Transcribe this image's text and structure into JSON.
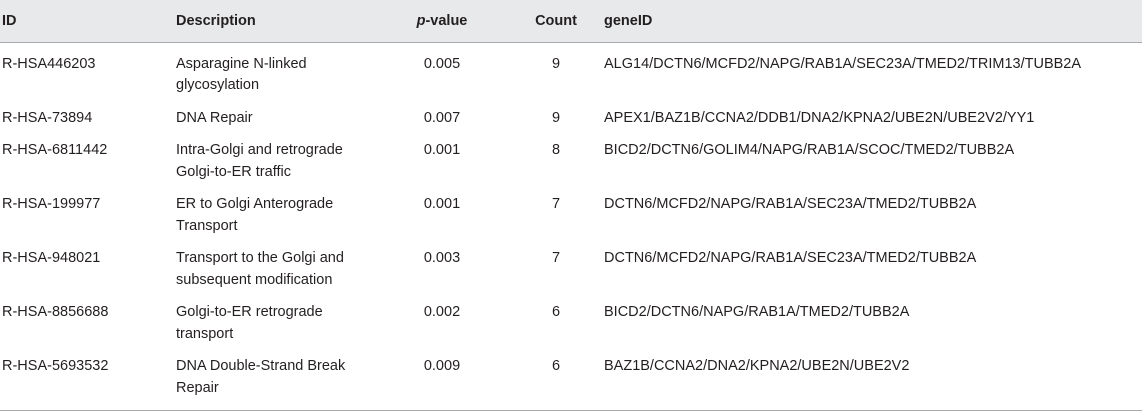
{
  "table": {
    "headers": {
      "id": "ID",
      "description": "Description",
      "pvalue_italic": "p",
      "pvalue_rest": "-value",
      "count": "Count",
      "geneid": "geneID"
    },
    "rows": [
      {
        "id": "R-HSA446203",
        "description": "Asparagine N-linked glycosylation",
        "pvalue": "0.005",
        "count": "9",
        "geneid": "ALG14/DCTN6/MCFD2/NAPG/RAB1A/SEC23A/TMED2/TRIM13/TUBB2A"
      },
      {
        "id": "R-HSA-73894",
        "description": "DNA Repair",
        "pvalue": "0.007",
        "count": "9",
        "geneid": "APEX1/BAZ1B/CCNA2/DDB1/DNA2/KPNA2/UBE2N/UBE2V2/YY1"
      },
      {
        "id": "R-HSA-6811442",
        "description": "Intra-Golgi and retrograde Golgi-to-ER traffic",
        "pvalue": "0.001",
        "count": "8",
        "geneid": "BICD2/DCTN6/GOLIM4/NAPG/RAB1A/SCOC/TMED2/TUBB2A"
      },
      {
        "id": "R-HSA-199977",
        "description": "ER to Golgi Anterograde Transport",
        "pvalue": "0.001",
        "count": "7",
        "geneid": "DCTN6/MCFD2/NAPG/RAB1A/SEC23A/TMED2/TUBB2A"
      },
      {
        "id": "R-HSA-948021",
        "description": "Transport to the Golgi and subsequent modification",
        "pvalue": "0.003",
        "count": "7",
        "geneid": "DCTN6/MCFD2/NAPG/RAB1A/SEC23A/TMED2/TUBB2A"
      },
      {
        "id": "R-HSA-8856688",
        "description": "Golgi-to-ER retrograde transport",
        "pvalue": "0.002",
        "count": "6",
        "geneid": "BICD2/DCTN6/NAPG/RAB1A/TMED2/TUBB2A"
      },
      {
        "id": "R-HSA-5693532",
        "description": "DNA Double-Strand Break Repair",
        "pvalue": "0.009",
        "count": "6",
        "geneid": "BAZ1B/CCNA2/DNA2/KPNA2/UBE2N/UBE2V2"
      }
    ]
  }
}
